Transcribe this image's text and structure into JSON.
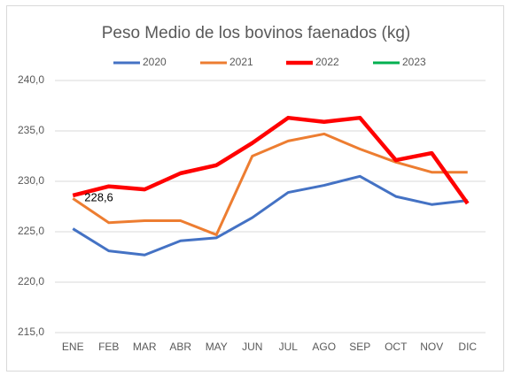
{
  "chart_data": {
    "type": "line",
    "title": "Peso Medio de los bovinos faenados (kg)",
    "categories": [
      "ENE",
      "FEB",
      "MAR",
      "ABR",
      "MAY",
      "JUN",
      "JUL",
      "AGO",
      "SEP",
      "OCT",
      "NOV",
      "DIC"
    ],
    "series": [
      {
        "name": "2020",
        "color": "#4472c4",
        "width": 3,
        "values": [
          225.3,
          223.1,
          222.7,
          224.1,
          224.4,
          226.4,
          228.9,
          229.6,
          230.5,
          228.5,
          227.7,
          228.1
        ]
      },
      {
        "name": "2021",
        "color": "#ed7d31",
        "width": 3,
        "values": [
          228.3,
          225.9,
          226.1,
          226.1,
          224.7,
          232.5,
          234.0,
          234.7,
          233.2,
          231.9,
          230.9,
          230.9
        ]
      },
      {
        "name": "2022",
        "color": "#ff0000",
        "width": 4.5,
        "values": [
          228.6,
          229.5,
          229.2,
          230.8,
          231.6,
          233.8,
          236.3,
          235.9,
          236.3,
          232.1,
          232.8,
          227.8
        ],
        "value_labels": [
          "228,6",
          null,
          null,
          null,
          null,
          null,
          null,
          null,
          null,
          null,
          null,
          null
        ]
      },
      {
        "name": "2023",
        "color": "#00b050",
        "width": 3,
        "values": [
          null,
          null,
          null,
          null,
          null,
          null,
          null,
          null,
          null,
          null,
          null,
          null
        ]
      }
    ],
    "ylim": [
      215,
      240
    ],
    "yticks": [
      {
        "value": 215,
        "label": "215,0"
      },
      {
        "value": 220,
        "label": "220,0"
      },
      {
        "value": 225,
        "label": "225,0"
      },
      {
        "value": 230,
        "label": "230,0"
      },
      {
        "value": 235,
        "label": "235,0"
      },
      {
        "value": 240,
        "label": "240,0"
      }
    ],
    "grid": true
  }
}
